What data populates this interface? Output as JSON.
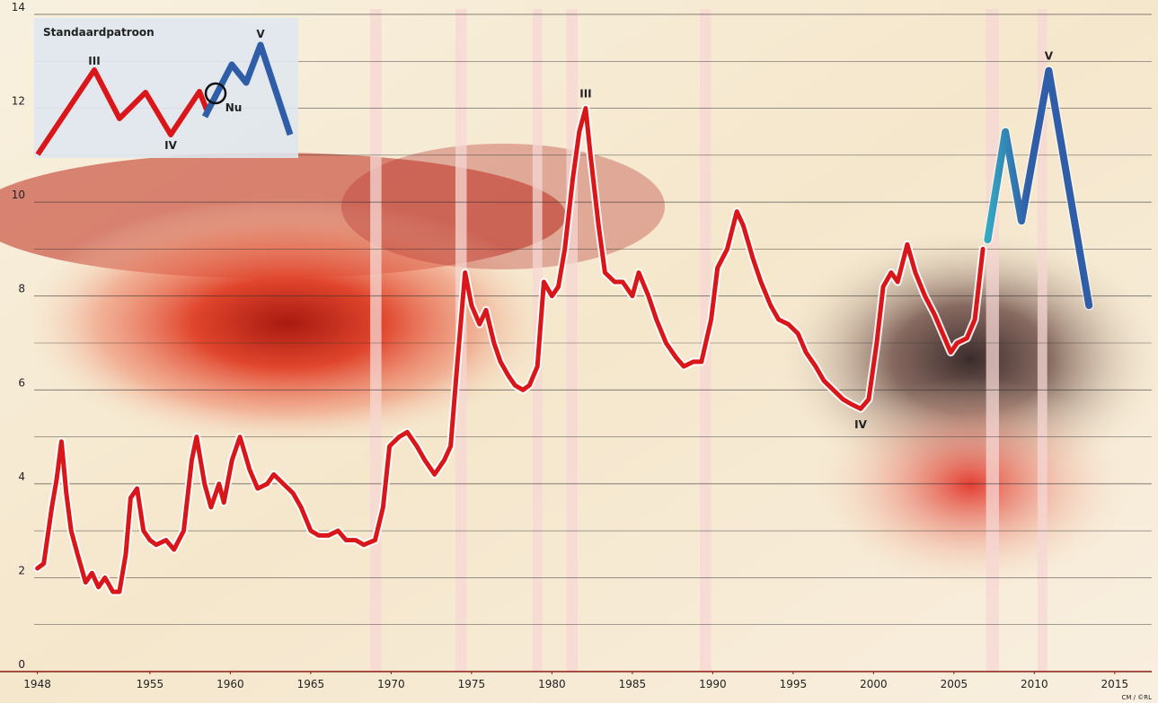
{
  "chart_data": {
    "type": "line",
    "xlim": [
      1947.8,
      2017.3
    ],
    "xticks": [
      1948,
      1955,
      1960,
      1965,
      1970,
      1975,
      1980,
      1985,
      1990,
      1995,
      2000,
      2005,
      2010,
      2015
    ],
    "ylim": [
      0,
      14
    ],
    "yticks": [
      0,
      2,
      4,
      6,
      8,
      10,
      12,
      14
    ],
    "minor_yticks": [
      1,
      3,
      5,
      7,
      9,
      11,
      13
    ],
    "grid": true,
    "shaded_periods": [
      [
        1968.7,
        1969.4
      ],
      [
        1974.0,
        1974.7
      ],
      [
        1978.8,
        1979.4
      ],
      [
        1980.9,
        1981.6
      ],
      [
        1989.2,
        1989.9
      ],
      [
        2007.0,
        2007.8
      ],
      [
        2010.2,
        2010.8
      ]
    ],
    "series": [
      {
        "color": "#d9171b",
        "x": [
          1948.0,
          1948.4,
          1948.9,
          1949.2,
          1949.5,
          1949.8,
          1950.1,
          1950.5,
          1951.0,
          1951.4,
          1951.8,
          1952.2,
          1952.7,
          1953.1,
          1953.5,
          1953.8,
          1954.2,
          1954.6,
          1955.0,
          1955.4,
          1956.0,
          1956.5,
          1957.1,
          1957.6,
          1957.9,
          1958.4,
          1958.8,
          1959.3,
          1959.6,
          1960.1,
          1960.6,
          1961.2,
          1961.7,
          1962.3,
          1962.7,
          1963.3,
          1963.9,
          1964.4,
          1965.0,
          1965.5,
          1966.1,
          1966.7,
          1967.2,
          1967.8,
          1968.3,
          1969.0,
          1969.5,
          1969.9,
          1970.5,
          1971.0,
          1971.6,
          1972.1,
          1972.7,
          1973.3,
          1973.7,
          1974.1,
          1974.6,
          1975.0,
          1975.5,
          1975.9,
          1976.4,
          1976.8,
          1977.3,
          1977.7,
          1978.2,
          1978.6,
          1979.1,
          1979.5,
          1980.0,
          1980.4,
          1980.8,
          1981.3,
          1981.7,
          1982.1,
          1982.4,
          1982.9,
          1983.3,
          1983.9,
          1984.4,
          1985.0,
          1985.4,
          1986.0,
          1986.5,
          1987.1,
          1987.7,
          1988.2,
          1988.8,
          1989.3,
          1989.9,
          1990.3,
          1990.9,
          1991.5,
          1991.9,
          1992.5,
          1993.0,
          1993.6,
          1994.1,
          1994.7,
          1995.3,
          1995.8,
          1996.4,
          1996.9,
          1997.5,
          1998.1,
          1998.6,
          1999.2,
          1999.7,
          2000.2,
          2000.6,
          2001.1,
          2001.5,
          2002.1,
          2002.6,
          2003.2,
          2003.8,
          2004.3,
          2004.8,
          2005.2,
          2005.8,
          2006.3,
          2006.8
        ],
        "values": [
          2.2,
          2.3,
          3.5,
          4.1,
          4.9,
          3.8,
          3.0,
          2.5,
          1.9,
          2.1,
          1.8,
          2.0,
          1.7,
          1.7,
          2.5,
          3.7,
          3.9,
          3.0,
          2.8,
          2.7,
          2.8,
          2.6,
          3.0,
          4.5,
          5.0,
          4.0,
          3.5,
          4.0,
          3.6,
          4.5,
          5.0,
          4.3,
          3.9,
          4.0,
          4.2,
          4.0,
          3.8,
          3.5,
          3.0,
          2.9,
          2.9,
          3.0,
          2.8,
          2.8,
          2.7,
          2.8,
          3.5,
          4.8,
          5.0,
          5.1,
          4.8,
          4.5,
          4.2,
          4.5,
          4.8,
          6.5,
          8.5,
          7.8,
          7.4,
          7.7,
          7.0,
          6.6,
          6.3,
          6.1,
          6.0,
          6.1,
          6.5,
          8.3,
          8.0,
          8.2,
          9.0,
          10.5,
          11.5,
          12.0,
          11.0,
          9.5,
          8.5,
          8.3,
          8.3,
          8.0,
          8.5,
          8.0,
          7.5,
          7.0,
          6.7,
          6.5,
          6.6,
          6.6,
          7.5,
          8.6,
          9.0,
          9.8,
          9.5,
          8.8,
          8.3,
          7.8,
          7.5,
          7.4,
          7.2,
          6.8,
          6.5,
          6.2,
          6.0,
          5.8,
          5.7,
          5.6,
          5.8,
          7.0,
          8.2,
          8.5,
          8.3,
          9.1,
          8.5,
          8.0,
          7.6,
          7.2,
          6.8,
          7.0,
          7.1,
          7.5,
          9.0
        ]
      },
      {
        "color": "#2f5da8",
        "x": [
          2007.1,
          2008.2,
          2009.2,
          2010.9,
          2013.4
        ],
        "values": [
          9.2,
          11.5,
          9.6,
          12.8,
          7.8
        ]
      }
    ],
    "annotations": [
      {
        "text": "III",
        "x": 1982.1,
        "y": 12.0
      },
      {
        "text": "IV",
        "x": 1999.2,
        "y": 5.6
      },
      {
        "text": "V",
        "x": 2010.9,
        "y": 12.8
      }
    ],
    "inset": {
      "title": "Standaardpatroon",
      "labels": [
        "III",
        "IV",
        "V",
        "Nu"
      ]
    },
    "credit": "CM / ©RL"
  }
}
